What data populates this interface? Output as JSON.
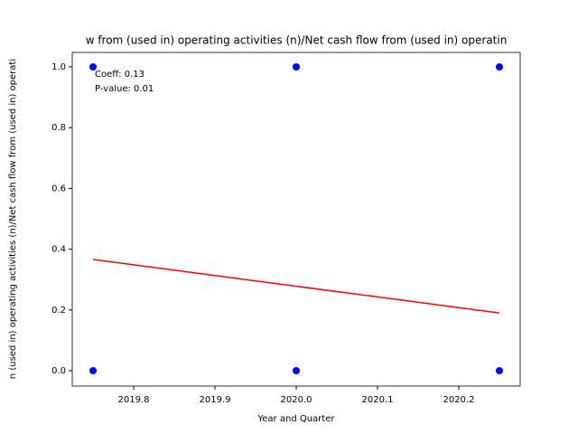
{
  "chart_data": {
    "type": "scatter",
    "title": "w from (used in) operating activities (n)/Net cash flow from (used in) operatin",
    "xlabel": "Year and Quarter",
    "ylabel": "n (used in) operating activities (n)/Net cash flow from (used in) operati",
    "x": [
      2019.75,
      2019.75,
      2020,
      2020,
      2020.25,
      2020.25
    ],
    "series": [
      {
        "color": "#0000ff",
        "values": [
          1,
          0,
          1,
          0,
          1,
          0
        ]
      }
    ],
    "fit": {
      "type": "line",
      "color": "#ff0000",
      "x": [
        2019.75,
        2020.25
      ],
      "values": [
        0.366,
        0.19
      ]
    },
    "annotations": [
      "Coeff: 0.13",
      "P-value: 0.01"
    ],
    "xlim": [
      2019.7244,
      2020.2756
    ],
    "ylim": [
      -0.0506,
      1.0476
    ],
    "xticks": [
      2019.8,
      2019.9,
      {
        "value": 2020,
        "label": "2020.0"
      },
      2020.1,
      2020.2
    ],
    "yticks": [
      {
        "value": 0,
        "label": "0.0"
      },
      0.2,
      0.4,
      0.6,
      0.8,
      {
        "value": 1,
        "label": "1.0"
      }
    ]
  }
}
